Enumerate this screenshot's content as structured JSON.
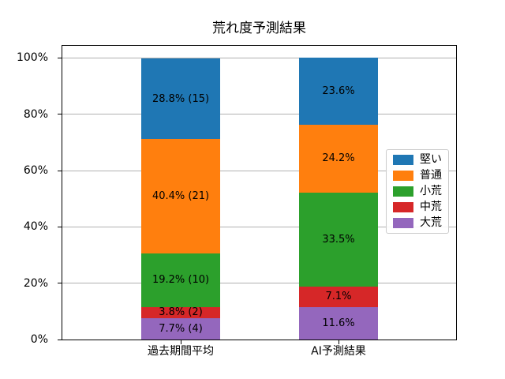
{
  "chart_data": {
    "type": "bar",
    "variant": "stacked-percent",
    "title": "荒れ度予測結果",
    "categories": [
      "過去期間平均",
      "AI予測結果"
    ],
    "series": [
      {
        "name": "堅い",
        "color": "#1f77b4",
        "values": [
          28.8,
          23.6
        ],
        "labels": [
          "28.8% (15)",
          "23.6%"
        ]
      },
      {
        "name": "普通",
        "color": "#ff7f0e",
        "values": [
          40.4,
          24.2
        ],
        "labels": [
          "40.4% (21)",
          "24.2%"
        ]
      },
      {
        "name": "小荒",
        "color": "#2ca02c",
        "values": [
          19.2,
          33.5
        ],
        "labels": [
          "19.2% (10)",
          "33.5%"
        ]
      },
      {
        "name": "中荒",
        "color": "#d62728",
        "values": [
          3.8,
          7.1
        ],
        "labels": [
          "3.8% (2)",
          "7.1%"
        ]
      },
      {
        "name": "大荒",
        "color": "#9467bd",
        "values": [
          7.7,
          11.6
        ],
        "labels": [
          "7.7% (4)",
          "11.6%"
        ]
      }
    ],
    "stack_order_bottom_to_top": [
      "大荒",
      "中荒",
      "小荒",
      "普通",
      "堅い"
    ],
    "y_tick_values": [
      0,
      20,
      40,
      60,
      80,
      100
    ],
    "y_ticks": [
      "0%",
      "20%",
      "40%",
      "60%",
      "80%",
      "100%"
    ],
    "ylim": [
      0,
      104.3
    ],
    "grid": "horizontal",
    "grid_color": "#b0b0b0",
    "axis_color": "#000000",
    "legend_position": "right-inside",
    "legend_entries": [
      "堅い",
      "普通",
      "小荒",
      "中荒",
      "大荒"
    ]
  }
}
